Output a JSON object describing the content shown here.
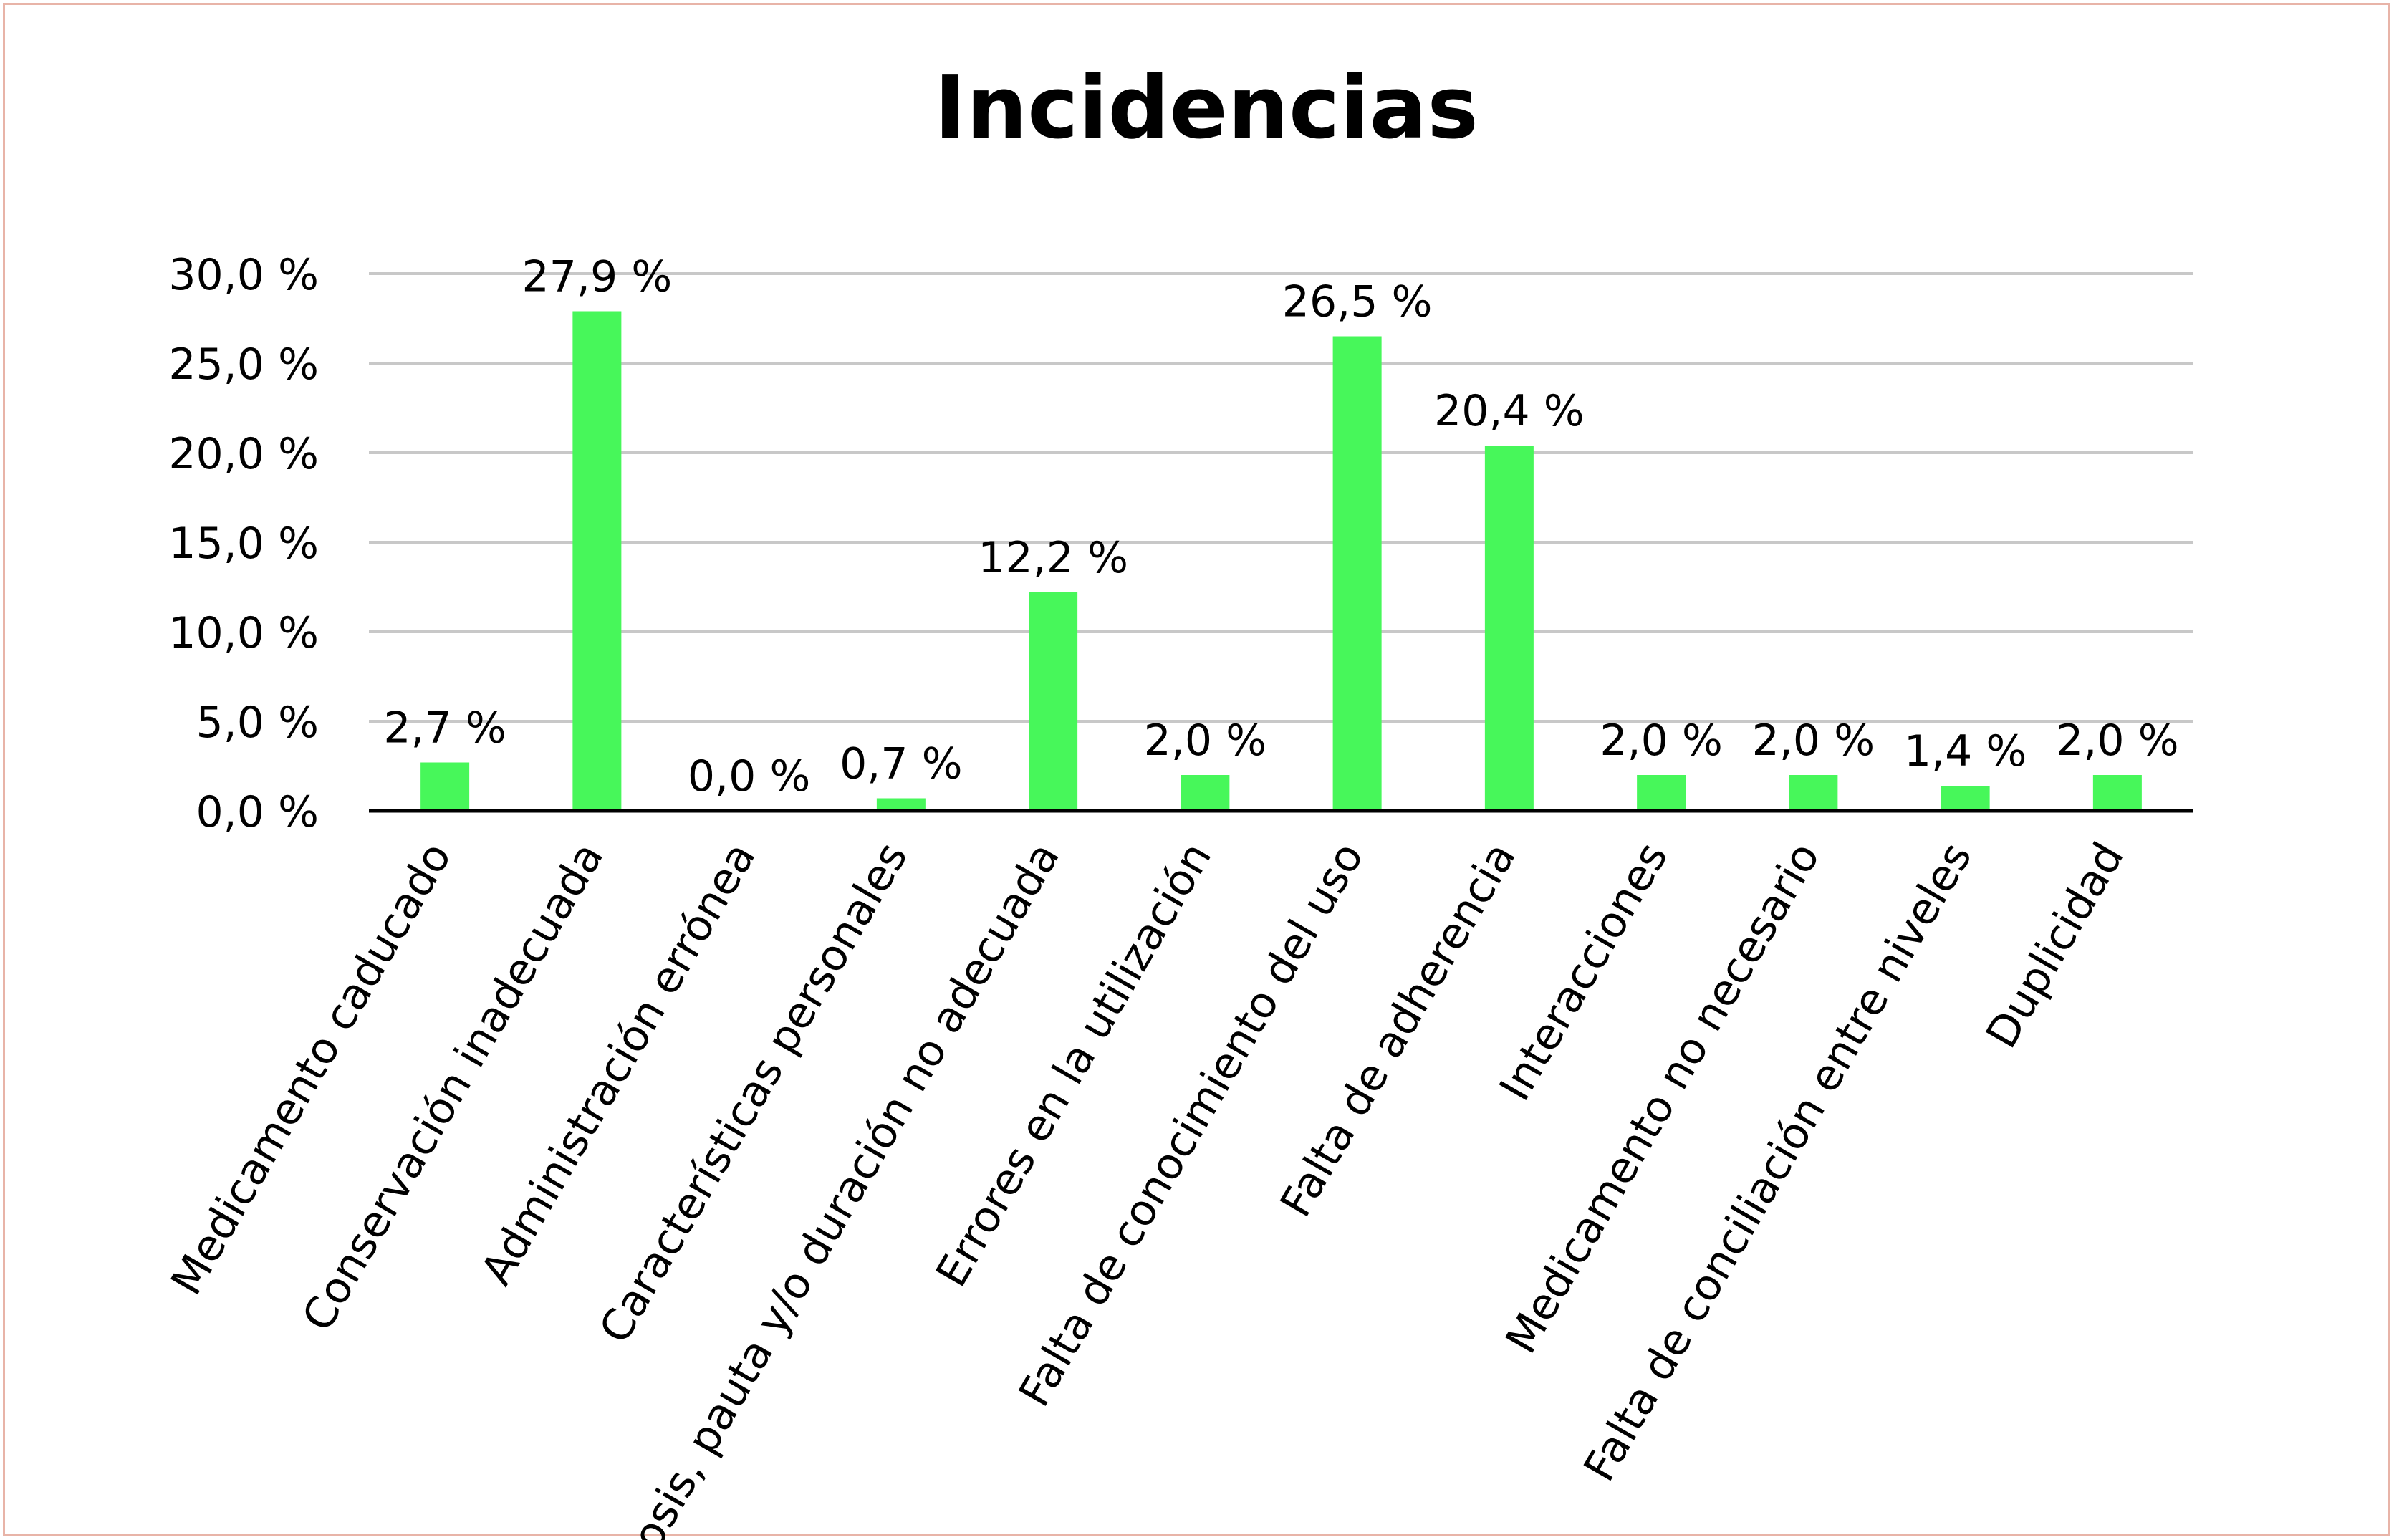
{
  "chart_data": {
    "type": "bar",
    "title": "Incidencias",
    "xlabel": "",
    "ylabel": "",
    "categories": [
      "Medicamento caducado",
      "Conservación inadecuada",
      "Administración errónea",
      "Características personales",
      "Dosis, pauta y/o duración no adecuada",
      "Errores en la utilización",
      "Falta de conocimiento del uso",
      "Falta de adherencia",
      "Interacciones",
      "Medicamento no necesario",
      "Falta de conciliación entre niveles",
      "Duplicidad"
    ],
    "values": [
      2.7,
      27.9,
      0.0,
      0.7,
      12.2,
      2.0,
      26.5,
      20.4,
      2.0,
      2.0,
      1.4,
      2.0
    ],
    "value_labels": [
      "2,7 %",
      "27,9 %",
      "0,0 %",
      "0,7 %",
      "12,2 %",
      "2,0 %",
      "26,5 %",
      "20,4 %",
      "2,0 %",
      "2,0 %",
      "1,4 %",
      "2,0 %"
    ],
    "yticks": [
      0,
      5,
      10,
      15,
      20,
      25,
      30
    ],
    "ytick_labels": [
      "0,0 %",
      "5,0 %",
      "10,0 %",
      "15,0 %",
      "20,0 %",
      "25,0 %",
      "30,0 %"
    ],
    "ylim": [
      0,
      30
    ],
    "grid": true,
    "legend": "none",
    "colors": {
      "bar": "#47f75a",
      "grid": "#c8c8c8",
      "axis": "#000000",
      "frame": "#e8b4a8"
    }
  }
}
